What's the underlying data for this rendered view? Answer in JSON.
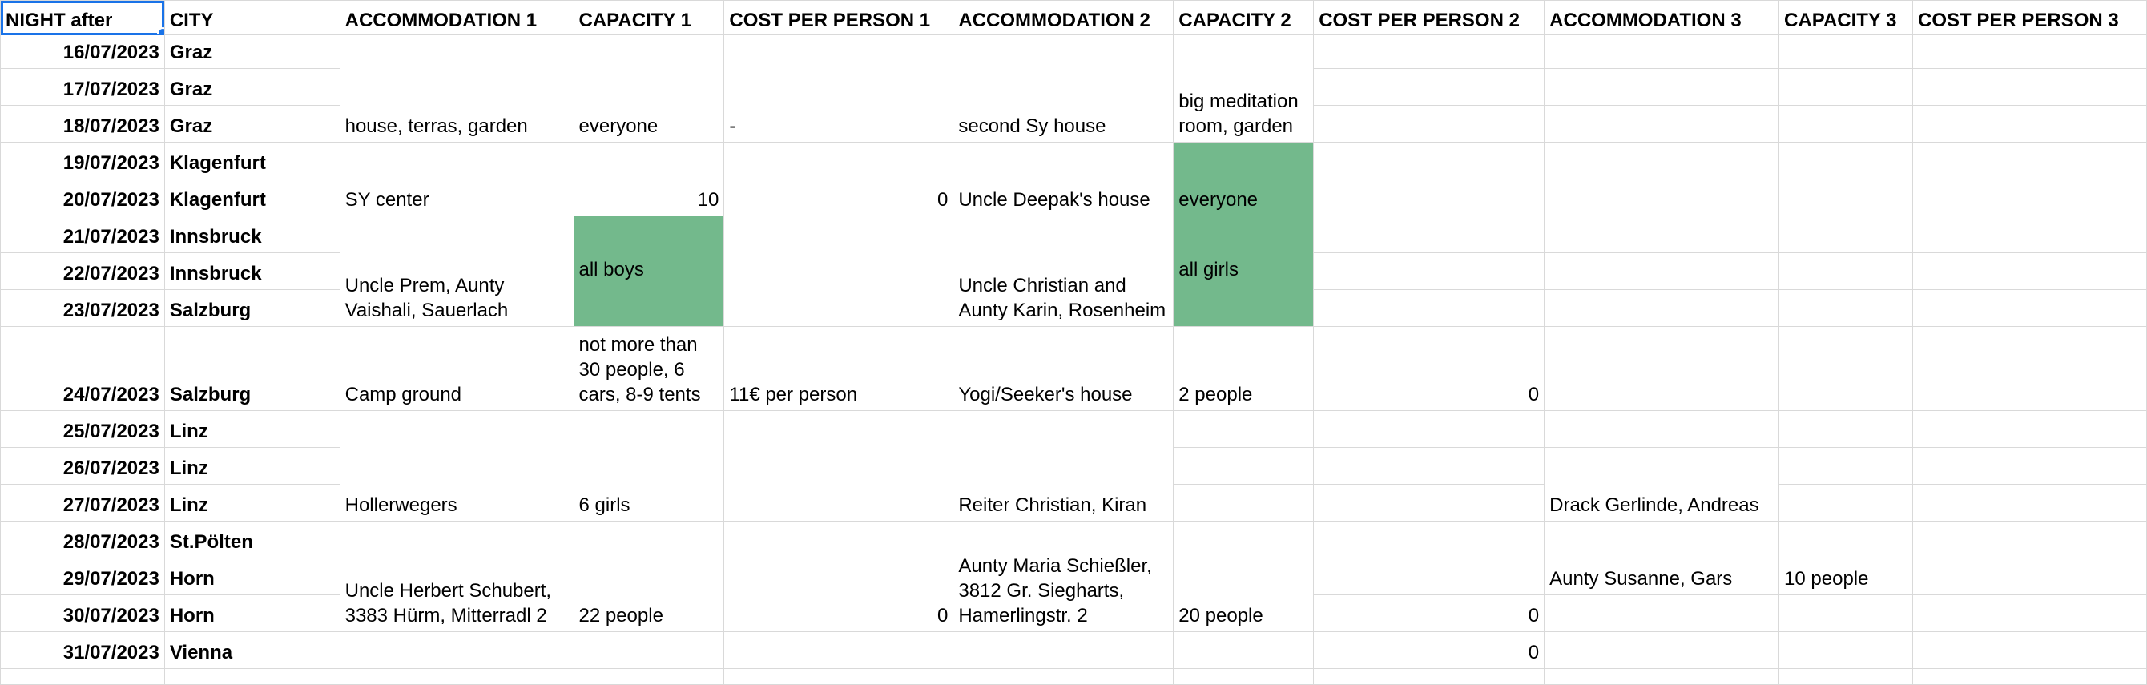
{
  "headers": [
    "NIGHT after",
    "CITY",
    "ACCOMMODATION 1",
    "CAPACITY 1",
    "COST PER PERSON 1",
    "ACCOMMODATION 2",
    "CAPACITY 2",
    "COST PER PERSON 2",
    "ACCOMMODATION 3",
    "CAPACITY 3",
    "COST PER PERSON 3"
  ],
  "rows": [
    {
      "date": "16/07/2023",
      "city": "Graz"
    },
    {
      "date": "17/07/2023",
      "city": "Graz"
    },
    {
      "date": "18/07/2023",
      "city": "Graz"
    },
    {
      "date": "19/07/2023",
      "city": "Klagenfurt"
    },
    {
      "date": "20/07/2023",
      "city": "Klagenfurt"
    },
    {
      "date": "21/07/2023",
      "city": "Innsbruck"
    },
    {
      "date": "22/07/2023",
      "city": "Innsbruck"
    },
    {
      "date": "23/07/2023",
      "city": "Salzburg"
    },
    {
      "date": "24/07/2023",
      "city": "Salzburg"
    },
    {
      "date": "25/07/2023",
      "city": "Linz"
    },
    {
      "date": "26/07/2023",
      "city": "Linz"
    },
    {
      "date": "27/07/2023",
      "city": "Linz"
    },
    {
      "date": "28/07/2023",
      "city": "St.Pölten"
    },
    {
      "date": "29/07/2023",
      "city": "Horn"
    },
    {
      "date": "30/07/2023",
      "city": "Horn"
    },
    {
      "date": "31/07/2023",
      "city": "Vienna"
    }
  ],
  "cells": {
    "graz_acc1": "house, terras, garden",
    "graz_cap1": "everyone",
    "graz_cost1": "-",
    "graz_acc2": "second Sy house",
    "graz_cap2": "big meditation room, garden",
    "klag_acc1": "SY center",
    "klag_cap1": "10",
    "klag_cost1": "0",
    "klag_acc2": "Uncle Deepak's house",
    "klag_cap2": "everyone",
    "inn_acc1": "Uncle Prem, Aunty Vaishali, Sauerlach",
    "inn_cap1": "all boys",
    "inn_acc2": "Uncle Christian and Aunty Karin, Rosenheim",
    "inn_cap2": "all girls",
    "salz_acc1": "Camp ground",
    "salz_cap1": "not more than 30 people, 6 cars, 8-9 tents",
    "salz_cost1": "11€ per person",
    "salz_acc2": "Yogi/Seeker's house",
    "salz_cap2": "2 people",
    "salz_cost2": "0",
    "linz_acc1": "Hollerwegers",
    "linz_cap1": "6 girls",
    "linz_acc2": "Reiter Christian, Kiran",
    "linz_acc3": "Drack Gerlinde, Andreas",
    "stp_acc1": "Uncle Herbert Schubert, 3383 Hürm, Mitterradl 2",
    "stp_cap1": "22 people",
    "stp_cost1": "0",
    "stp_acc2": "Aunty Maria Schießler, 3812 Gr. Siegharts, Hamerlingstr. 2",
    "stp_cap2": "20 people",
    "horn30_cost2": "0",
    "horn29_acc3": "Aunty Susanne, Gars",
    "horn29_cap3": "10 people",
    "vienna_cost2": "0"
  },
  "colors": {
    "green_fill": "#73b98c",
    "gridline": "#d9d9d9",
    "selection": "#1a73e8"
  }
}
